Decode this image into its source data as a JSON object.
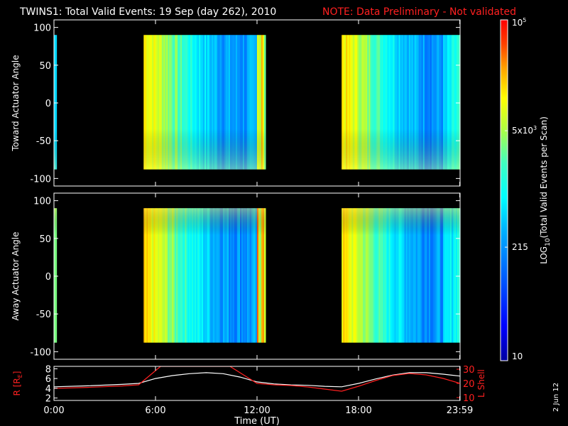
{
  "title": "TWINS1: Total Valid Events: 19 Sep (day 262), 2010",
  "note": "NOTE: Data Preliminary - Not validated",
  "date_stamp": "2 Jun 12",
  "colors": {
    "background": "#000000",
    "foreground": "#ffffff",
    "note": "#ff2020"
  },
  "chart_data": [
    {
      "type": "heatmap",
      "panel": "top",
      "ylabel": "Toward Actuator Angle",
      "yticks": [
        "100",
        "50",
        "0",
        "-50",
        "-100"
      ],
      "ytick_values": [
        100,
        50,
        0,
        -50,
        -100
      ],
      "ylim": [
        -110,
        110
      ],
      "xlim": [
        0,
        24
      ],
      "data_range_y": [
        -88,
        90
      ],
      "blocks": [
        {
          "start_hour": 0.0,
          "end_hour": 0.15,
          "level": 0.35
        },
        {
          "start_hour": 5.3,
          "end_hour": 12.5,
          "level": 0.4
        },
        {
          "start_hour": 17.0,
          "end_hour": 24.0,
          "level": 0.45
        }
      ]
    },
    {
      "type": "heatmap",
      "panel": "middle",
      "ylabel": "Away Actuator Angle",
      "yticks": [
        "100",
        "50",
        "0",
        "-50",
        "-100"
      ],
      "ytick_values": [
        100,
        50,
        0,
        -50,
        -100
      ],
      "ylim": [
        -110,
        110
      ],
      "xlim": [
        0,
        24
      ],
      "data_range_y": [
        -88,
        90
      ],
      "blocks": [
        {
          "start_hour": 0.0,
          "end_hour": 0.15,
          "level": 0.55
        },
        {
          "start_hour": 5.3,
          "end_hour": 12.5,
          "level": 0.45
        },
        {
          "start_hour": 17.0,
          "end_hour": 24.0,
          "level": 0.5
        }
      ]
    },
    {
      "type": "line",
      "panel": "bottom",
      "ylabel_left": "R [R",
      "ylabel_left_sub": "E",
      "ylabel_left_close": "]",
      "ylabel_right": "L Shell",
      "yticks_left": [
        "8",
        "6",
        "4",
        "2"
      ],
      "ytick_values_left": [
        8,
        6,
        4,
        2
      ],
      "ylim_left": [
        1.5,
        8.5
      ],
      "yticks_right": [
        "30",
        "20",
        "10"
      ],
      "ytick_values_right": [
        30,
        20,
        10
      ],
      "ylim_right": [
        8,
        32
      ],
      "xlim": [
        0,
        24
      ],
      "xticks": [
        "0:00",
        "6:00",
        "12:00",
        "18:00",
        "23:59"
      ],
      "xtick_values": [
        0,
        6,
        12,
        18,
        23.98
      ],
      "xlabel": "Time (UT)",
      "series": [
        {
          "axis": "left",
          "color": "#ffffff",
          "x": [
            0,
            2,
            4,
            5,
            6,
            7,
            8,
            9,
            10,
            11,
            12,
            13,
            14,
            15,
            16,
            17,
            18,
            19,
            20,
            21,
            22,
            23,
            24
          ],
          "y": [
            4.3,
            4.5,
            4.8,
            5.0,
            6.0,
            6.6,
            7.0,
            7.2,
            7.0,
            6.3,
            5.3,
            4.9,
            4.7,
            4.6,
            4.4,
            4.3,
            5.0,
            5.9,
            6.7,
            7.2,
            7.2,
            6.9,
            6.5
          ]
        },
        {
          "axis": "right",
          "color": "#ff2020",
          "x": [
            0,
            2,
            4,
            5,
            6.3,
            10.4,
            12.0,
            13,
            14,
            15,
            16,
            17,
            18,
            19,
            20,
            21,
            22,
            23,
            24
          ],
          "y": [
            16.5,
            17.2,
            18.2,
            19.0,
            32,
            32,
            20.0,
            19.0,
            18.5,
            17.5,
            16.0,
            14.5,
            18.0,
            22.0,
            25.5,
            27.0,
            26.0,
            23.5,
            20.0
          ]
        }
      ]
    }
  ],
  "colorbar": {
    "label_main": "LOG",
    "label_sub": "10",
    "label_rest": "(Total Valid Events per Scan)",
    "ticks": [
      {
        "label": "10",
        "value": 10
      },
      {
        "label": "215",
        "value": 215
      },
      {
        "label": "5x10",
        "value": 5000,
        "sup": "3"
      },
      {
        "label": "10",
        "value": 100000,
        "sup": "5"
      }
    ],
    "range": [
      10,
      100000
    ],
    "colors": [
      "#0000a0",
      "#0000ff",
      "#0060ff",
      "#00b0ff",
      "#00ffff",
      "#40ffc0",
      "#b0ff40",
      "#ffff00",
      "#ffa000",
      "#ff4000",
      "#ff0000"
    ]
  }
}
